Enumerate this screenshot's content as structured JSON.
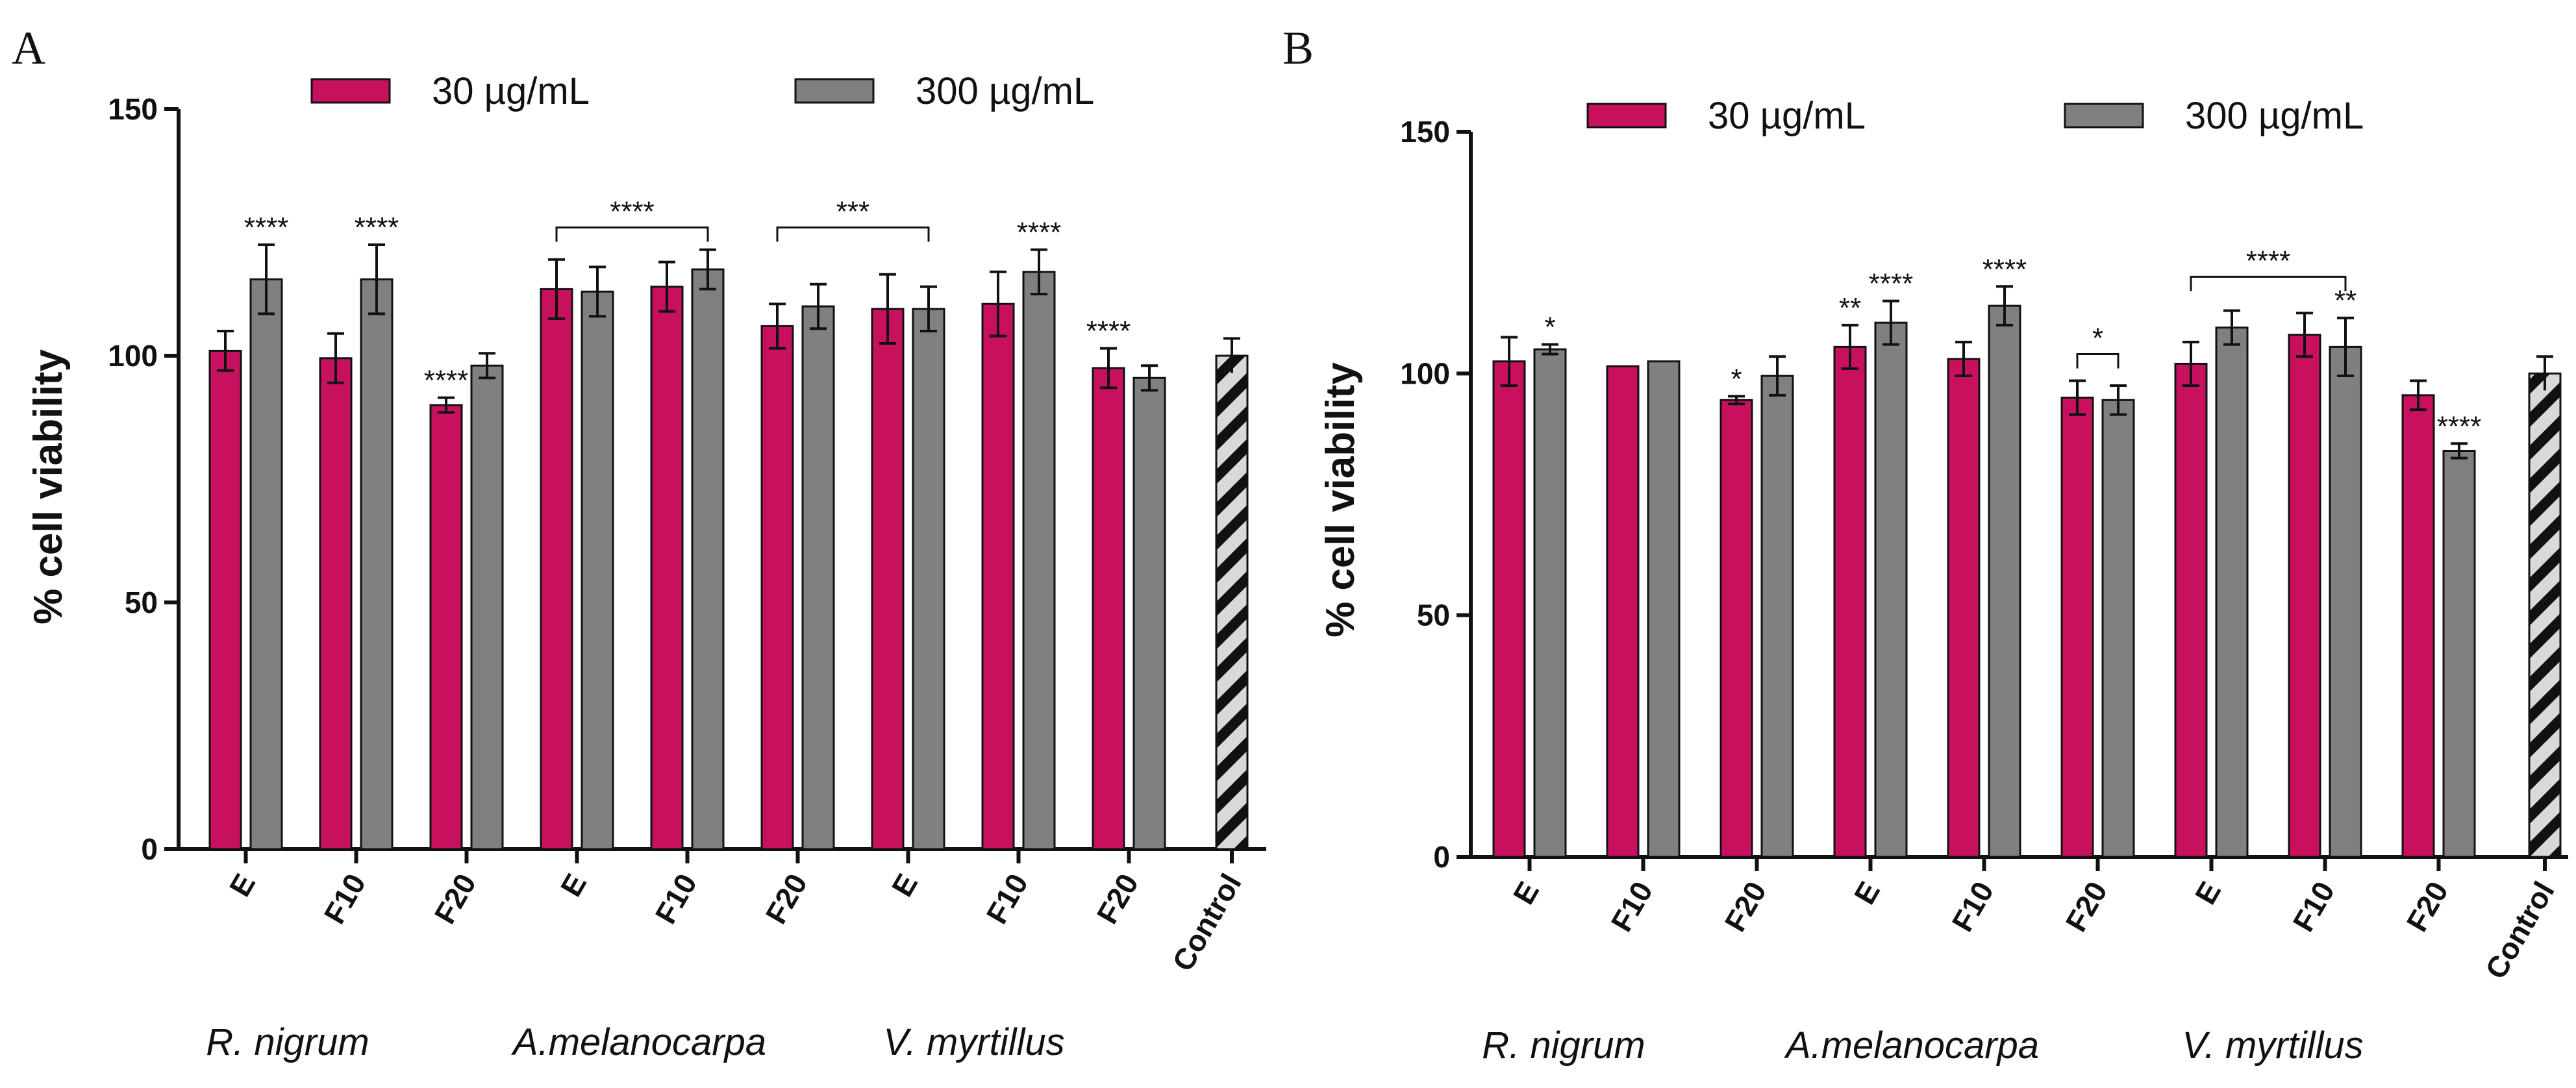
{
  "colors": {
    "series_30": "#c8115e",
    "series_300": "#808080",
    "control_fill": "#d9d9d9",
    "control_hatch": "#111111",
    "axis": "#111111"
  },
  "legend": {
    "series_30": "30 µg/mL",
    "series_300": "300 µg/mL"
  },
  "chart_data": [
    {
      "panel": "A",
      "type": "bar",
      "ylabel": "% cell viability",
      "ylim": [
        0,
        150
      ],
      "yticks": [
        0,
        50,
        100,
        150
      ],
      "categories": [
        "E",
        "F10",
        "F20",
        "E",
        "F10",
        "F20",
        "E",
        "F10",
        "F20",
        "Control"
      ],
      "groups": [
        {
          "name": "R. nigrum",
          "categories": [
            "E",
            "F10",
            "F20"
          ]
        },
        {
          "name": "A.melanocarpa",
          "categories": [
            "E",
            "F10",
            "F20"
          ]
        },
        {
          "name": "V. myrtillus",
          "categories": [
            "E",
            "F10",
            "F20"
          ]
        }
      ],
      "series": [
        {
          "name": "30 µg/mL",
          "values": [
            101,
            99.5,
            90,
            113.5,
            114,
            106,
            109.5,
            110.5,
            97.5,
            null
          ],
          "errors": [
            4,
            5,
            1.5,
            6,
            5,
            4.5,
            7,
            6.5,
            4,
            null
          ]
        },
        {
          "name": "300 µg/mL",
          "values": [
            115.5,
            115.5,
            98,
            113,
            117.5,
            110,
            109.5,
            117,
            95.5,
            null
          ],
          "errors": [
            7,
            7,
            2.5,
            5,
            4,
            4.5,
            4.5,
            4.5,
            2.5,
            null
          ]
        }
      ],
      "control": {
        "label": "Control",
        "value": 100,
        "error": 3.5
      },
      "annotations": [
        {
          "text": "****",
          "category_index": 0,
          "series": 1
        },
        {
          "text": "****",
          "category_index": 1,
          "series": 1
        },
        {
          "text": "****",
          "category_index": 2,
          "series": 0
        },
        {
          "text": "****",
          "bracket": [
            3,
            4
          ],
          "y": 126
        },
        {
          "text": "***",
          "bracket": [
            5,
            6
          ],
          "y": 126
        },
        {
          "text": "****",
          "category_index": 7,
          "series": 1
        },
        {
          "text": "****",
          "category_index": 8,
          "series": 0
        }
      ]
    },
    {
      "panel": "B",
      "type": "bar",
      "ylabel": "% cell viability",
      "ylim": [
        0,
        150
      ],
      "yticks": [
        0,
        50,
        100,
        150
      ],
      "categories": [
        "E",
        "F10",
        "F20",
        "E",
        "F10",
        "F20",
        "E",
        "F10",
        "F20",
        "Control"
      ],
      "groups": [
        {
          "name": "R. nigrum",
          "categories": [
            "E",
            "F10",
            "F20"
          ]
        },
        {
          "name": "A.melanocarpa",
          "categories": [
            "E",
            "F10",
            "F20"
          ]
        },
        {
          "name": "V. myrtillus",
          "categories": [
            "E",
            "F10",
            "F20"
          ]
        }
      ],
      "series": [
        {
          "name": "30 µg/mL",
          "values": [
            102.5,
            101.5,
            94.5,
            105.5,
            103,
            95,
            102,
            108,
            95.5,
            null
          ],
          "errors": [
            5,
            0,
            0.8,
            4.5,
            3.5,
            3.5,
            4.5,
            4.5,
            3,
            null
          ]
        },
        {
          "name": "300 µg/mL",
          "values": [
            105,
            102.5,
            99.5,
            110.5,
            114,
            94.5,
            109.5,
            105.5,
            84,
            null
          ],
          "errors": [
            1,
            0,
            4,
            4.5,
            4,
            3,
            3.5,
            6,
            1.5,
            null
          ]
        }
      ],
      "control": {
        "label": "Control",
        "value": 100,
        "error": 3.5
      },
      "annotations": [
        {
          "text": "*",
          "category_index": 0,
          "series": 1
        },
        {
          "text": "*",
          "category_index": 2,
          "series": 0
        },
        {
          "text": "**",
          "category_index": 3,
          "series": 0
        },
        {
          "text": "****",
          "category_index": 3,
          "series": 1
        },
        {
          "text": "****",
          "category_index": 4,
          "series": 1
        },
        {
          "text": "*",
          "bracket": [
            5,
            5
          ],
          "y": 104
        },
        {
          "text": "****",
          "bracket": [
            6,
            7
          ],
          "y": 120
        },
        {
          "text": "**",
          "category_index": 7,
          "series": 1
        },
        {
          "text": "****",
          "category_index": 8,
          "series": 1
        }
      ]
    }
  ]
}
